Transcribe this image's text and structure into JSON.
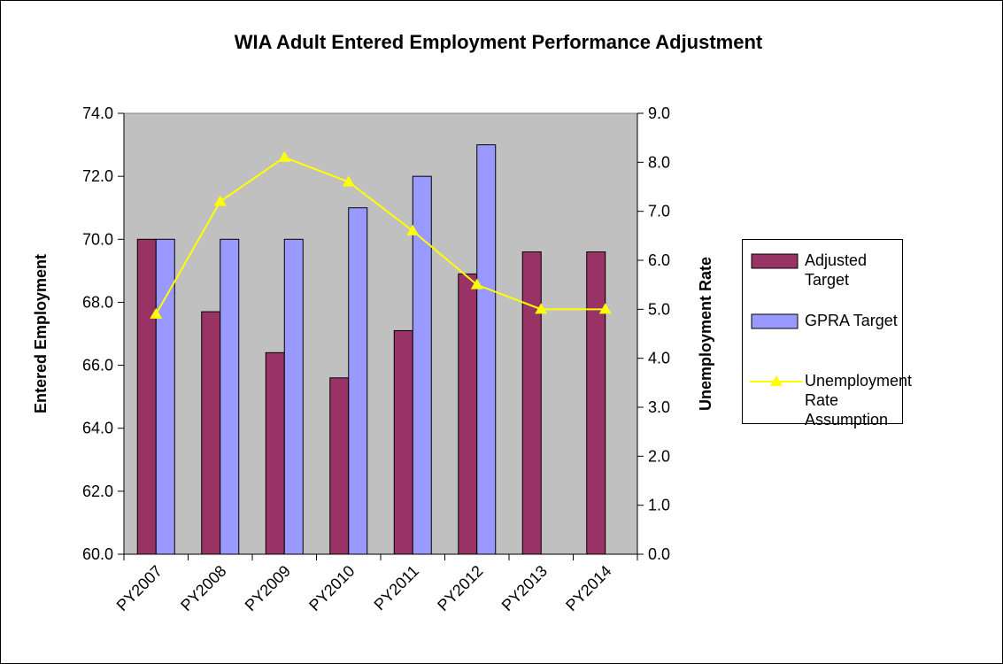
{
  "chart_data": {
    "type": "bar_line",
    "title": "WIA Adult Entered Employment Performance Adjustment",
    "y_label": "Entered Employment",
    "y2_label": "Unemployment Rate",
    "categories": [
      "PY2007",
      "PY2008",
      "PY2009",
      "PY2010",
      "PY2011",
      "PY2012",
      "PY2013",
      "PY2014"
    ],
    "series": [
      {
        "name": "Adjusted Target",
        "type": "bar",
        "color": "#993366",
        "values": [
          70.0,
          67.7,
          66.4,
          65.6,
          67.1,
          68.9,
          69.6,
          69.6
        ]
      },
      {
        "name": "GPRA Target",
        "type": "bar",
        "color": "#9999ff",
        "values": [
          70.0,
          70.0,
          70.0,
          71.0,
          72.0,
          73.0,
          null,
          null
        ]
      },
      {
        "name": "Unemployment Rate Assumption",
        "type": "line",
        "axis": "y2",
        "color": "#ffff00",
        "values": [
          4.9,
          7.2,
          8.1,
          7.6,
          6.6,
          5.5,
          5.0,
          5.0
        ]
      }
    ],
    "ylim": [
      60,
      74
    ],
    "yticks": [
      {
        "value": 60,
        "label": "60.0"
      },
      {
        "value": 62,
        "label": "62.0"
      },
      {
        "value": 64,
        "label": "64.0"
      },
      {
        "value": 66,
        "label": "66.0"
      },
      {
        "value": 68,
        "label": "68.0"
      },
      {
        "value": 70,
        "label": "70.0"
      },
      {
        "value": 72,
        "label": "72.0"
      },
      {
        "value": 74,
        "label": "74.0"
      }
    ],
    "y2lim": [
      0,
      9
    ],
    "y2ticks": [
      {
        "value": 0,
        "label": "0.0"
      },
      {
        "value": 1,
        "label": "1.0"
      },
      {
        "value": 2,
        "label": "2.0"
      },
      {
        "value": 3,
        "label": "3.0"
      },
      {
        "value": 4,
        "label": "4.0"
      },
      {
        "value": 5,
        "label": "5.0"
      },
      {
        "value": 6,
        "label": "6.0"
      },
      {
        "value": 7,
        "label": "7.0"
      },
      {
        "value": 8,
        "label": "8.0"
      },
      {
        "value": 9,
        "label": "9.0"
      }
    ],
    "plot_background": "#c0c0c0",
    "legend": "right"
  }
}
